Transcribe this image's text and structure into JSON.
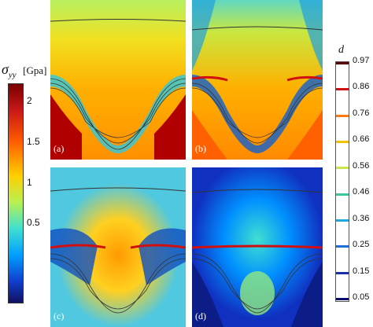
{
  "left_colorbar": {
    "symbol": "σ",
    "subscript": "yy",
    "unit": "[Gpa]",
    "ticks": [
      "2",
      "1.5",
      "1",
      "0.5"
    ]
  },
  "right_legend": {
    "symbol": "d",
    "ticks": [
      "0.97",
      "0.86",
      "0.76",
      "0.66",
      "0.56",
      "0.46",
      "0.36",
      "0.25",
      "0.15",
      "0.05"
    ],
    "colors": [
      "#5a0000",
      "#d01010",
      "#ff7a10",
      "#f2c200",
      "#c8e84a",
      "#3ac7a0",
      "#20a6e0",
      "#1d6ed8",
      "#1a2fa8",
      "#0a0a6a"
    ]
  },
  "panels": [
    {
      "label": "(a)",
      "theme": "high"
    },
    {
      "label": "(b)",
      "theme": "midhigh"
    },
    {
      "label": "(c)",
      "theme": "mid"
    },
    {
      "label": "(d)",
      "theme": "low"
    }
  ]
}
